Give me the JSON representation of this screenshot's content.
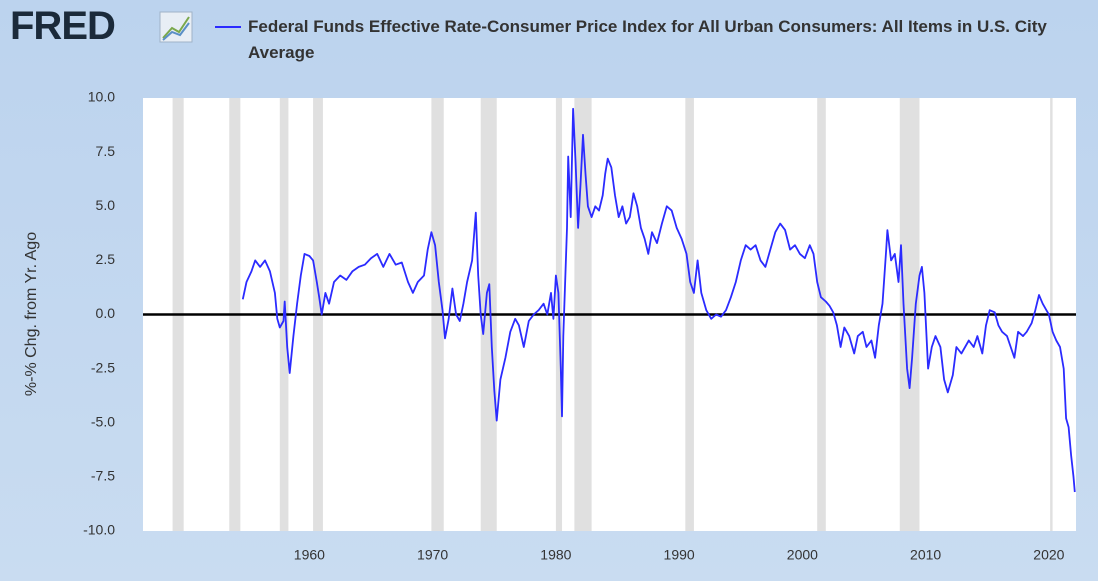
{
  "chart_data": {
    "type": "line",
    "logo": "FRED",
    "y_label": "%-% Chg. from Yr. Ago",
    "xlim": [
      1946.5,
      2022.2
    ],
    "xticks": [
      1960,
      1970,
      1980,
      1990,
      2000,
      2010,
      2020
    ],
    "ylim": [
      -10,
      10
    ],
    "yticks": [
      {
        "value": -10,
        "label": "-10.0"
      },
      {
        "value": -7.5,
        "label": "-7.5"
      },
      {
        "value": -5,
        "label": "-5.0"
      },
      {
        "value": -2.5,
        "label": "-2.5"
      },
      {
        "value": 0,
        "label": "0.0"
      },
      {
        "value": 2.5,
        "label": "2.5"
      },
      {
        "value": 5,
        "label": "5.0"
      },
      {
        "value": 7.5,
        "label": "7.5"
      },
      {
        "value": 10,
        "label": "10.0"
      }
    ],
    "grid": false,
    "reference_line": 0,
    "recession_shading": [
      [
        1948.9,
        1949.8
      ],
      [
        1953.5,
        1954.4
      ],
      [
        1957.6,
        1958.3
      ],
      [
        1960.3,
        1961.1
      ],
      [
        1969.9,
        1970.9
      ],
      [
        1973.9,
        1975.2
      ],
      [
        1980.0,
        1980.5
      ],
      [
        1981.5,
        1982.9
      ],
      [
        1990.5,
        1991.2
      ],
      [
        2001.2,
        2001.9
      ],
      [
        2007.9,
        2009.5
      ],
      [
        2020.1,
        2020.3
      ]
    ],
    "series": [
      {
        "name": "Federal Funds Effective Rate-Consumer Price Index for All Urban Consumers: All Items in U.S. City Average",
        "color": "#2b2bff",
        "x": [
          1954.6,
          1954.9,
          1955.3,
          1955.6,
          1956.0,
          1956.4,
          1956.8,
          1957.2,
          1957.4,
          1957.6,
          1957.9,
          1958.0,
          1958.2,
          1958.4,
          1958.7,
          1959.0,
          1959.3,
          1959.6,
          1960.0,
          1960.3,
          1960.6,
          1960.8,
          1961.0,
          1961.3,
          1961.6,
          1962.0,
          1962.5,
          1963.0,
          1963.5,
          1964.0,
          1964.5,
          1965.0,
          1965.5,
          1966.0,
          1966.5,
          1967.0,
          1967.5,
          1968.0,
          1968.4,
          1968.8,
          1969.3,
          1969.6,
          1969.9,
          1970.2,
          1970.5,
          1970.8,
          1971.0,
          1971.3,
          1971.6,
          1971.9,
          1972.2,
          1972.5,
          1972.8,
          1973.2,
          1973.5,
          1973.7,
          1973.9,
          1974.1,
          1974.4,
          1974.6,
          1974.8,
          1975.0,
          1975.2,
          1975.5,
          1975.9,
          1976.3,
          1976.7,
          1977.0,
          1977.4,
          1977.8,
          1978.2,
          1978.6,
          1979.0,
          1979.3,
          1979.6,
          1979.8,
          1980.0,
          1980.2,
          1980.4,
          1980.5,
          1980.6,
          1980.9,
          1981.0,
          1981.2,
          1981.4,
          1981.6,
          1981.8,
          1982.0,
          1982.2,
          1982.4,
          1982.6,
          1982.9,
          1983.2,
          1983.5,
          1983.8,
          1984.0,
          1984.2,
          1984.5,
          1984.8,
          1985.1,
          1985.4,
          1985.7,
          1986.0,
          1986.3,
          1986.6,
          1986.9,
          1987.2,
          1987.5,
          1987.8,
          1988.2,
          1988.6,
          1989.0,
          1989.4,
          1989.8,
          1990.2,
          1990.6,
          1990.9,
          1991.2,
          1991.5,
          1991.8,
          1992.2,
          1992.6,
          1993.0,
          1993.4,
          1993.8,
          1994.2,
          1994.6,
          1995.0,
          1995.4,
          1995.8,
          1996.2,
          1996.6,
          1997.0,
          1997.4,
          1997.8,
          1998.2,
          1998.6,
          1999.0,
          1999.4,
          1999.8,
          2000.2,
          2000.6,
          2000.9,
          2001.2,
          2001.5,
          2001.9,
          2002.2,
          2002.5,
          2002.8,
          2003.1,
          2003.4,
          2003.8,
          2004.2,
          2004.5,
          2004.9,
          2005.2,
          2005.6,
          2005.9,
          2006.2,
          2006.5,
          2006.8,
          2006.9,
          2007.2,
          2007.5,
          2007.8,
          2008.0,
          2008.2,
          2008.5,
          2008.7,
          2008.9,
          2009.2,
          2009.5,
          2009.7,
          2009.9,
          2010.2,
          2010.5,
          2010.8,
          2011.2,
          2011.5,
          2011.8,
          2012.2,
          2012.5,
          2012.9,
          2013.2,
          2013.5,
          2013.9,
          2014.2,
          2014.6,
          2014.9,
          2015.2,
          2015.6,
          2015.9,
          2016.2,
          2016.6,
          2016.9,
          2017.2,
          2017.5,
          2017.9,
          2018.2,
          2018.6,
          2018.9,
          2019.2,
          2019.5,
          2019.8,
          2020.0,
          2020.3,
          2020.6,
          2020.9,
          2021.2,
          2021.4,
          2021.6,
          2021.8,
          2022.0,
          2022.1
        ],
        "values": [
          0.7,
          1.5,
          2.0,
          2.5,
          2.2,
          2.5,
          2.0,
          1.0,
          -0.2,
          -0.6,
          -0.3,
          0.6,
          -1.5,
          -2.7,
          -1.0,
          0.5,
          1.8,
          2.8,
          2.7,
          2.5,
          1.5,
          0.8,
          0.0,
          1.0,
          0.5,
          1.5,
          1.8,
          1.6,
          2.0,
          2.2,
          2.3,
          2.6,
          2.8,
          2.2,
          2.8,
          2.3,
          2.4,
          1.5,
          1.0,
          1.5,
          1.8,
          3.0,
          3.8,
          3.2,
          1.5,
          0.2,
          -1.1,
          -0.2,
          1.2,
          0.0,
          -0.3,
          0.5,
          1.5,
          2.5,
          4.7,
          1.8,
          0.0,
          -0.9,
          1.0,
          1.4,
          -1.5,
          -3.5,
          -4.9,
          -3.0,
          -2.0,
          -0.8,
          -0.2,
          -0.5,
          -1.5,
          -0.3,
          0.0,
          0.2,
          0.5,
          0.0,
          1.0,
          -0.2,
          1.8,
          1.0,
          -2.5,
          -4.7,
          -1.0,
          4.0,
          7.3,
          4.5,
          9.5,
          7.0,
          4.0,
          6.0,
          8.3,
          6.5,
          5.0,
          4.5,
          5.0,
          4.8,
          5.5,
          6.5,
          7.2,
          6.8,
          5.5,
          4.5,
          5.0,
          4.2,
          4.5,
          5.6,
          5.0,
          4.0,
          3.5,
          2.8,
          3.8,
          3.3,
          4.2,
          5.0,
          4.8,
          4.0,
          3.5,
          2.8,
          1.5,
          1.0,
          2.5,
          1.0,
          0.2,
          -0.2,
          0.0,
          -0.1,
          0.2,
          0.8,
          1.5,
          2.5,
          3.2,
          3.0,
          3.2,
          2.5,
          2.2,
          3.0,
          3.8,
          4.2,
          3.9,
          3.0,
          3.2,
          2.8,
          2.6,
          3.2,
          2.8,
          1.5,
          0.8,
          0.6,
          0.4,
          0.1,
          -0.5,
          -1.5,
          -0.6,
          -1.0,
          -1.8,
          -1.0,
          -0.8,
          -1.5,
          -1.2,
          -2.0,
          -0.5,
          0.5,
          3.0,
          3.9,
          2.5,
          2.8,
          1.5,
          3.2,
          0.5,
          -2.5,
          -3.4,
          -2.0,
          0.5,
          1.8,
          2.2,
          1.0,
          -2.5,
          -1.5,
          -1.0,
          -1.5,
          -3.0,
          -3.6,
          -2.8,
          -1.5,
          -1.8,
          -1.5,
          -1.2,
          -1.5,
          -1.0,
          -1.8,
          -0.5,
          0.2,
          0.1,
          -0.5,
          -0.8,
          -1.0,
          -1.5,
          -2.0,
          -0.8,
          -1.0,
          -0.8,
          -0.4,
          0.2,
          0.9,
          0.5,
          0.2,
          0.0,
          -0.8,
          -1.2,
          -1.5,
          -2.5,
          -4.8,
          -5.2,
          -6.5,
          -7.5,
          -8.2
        ]
      }
    ]
  }
}
